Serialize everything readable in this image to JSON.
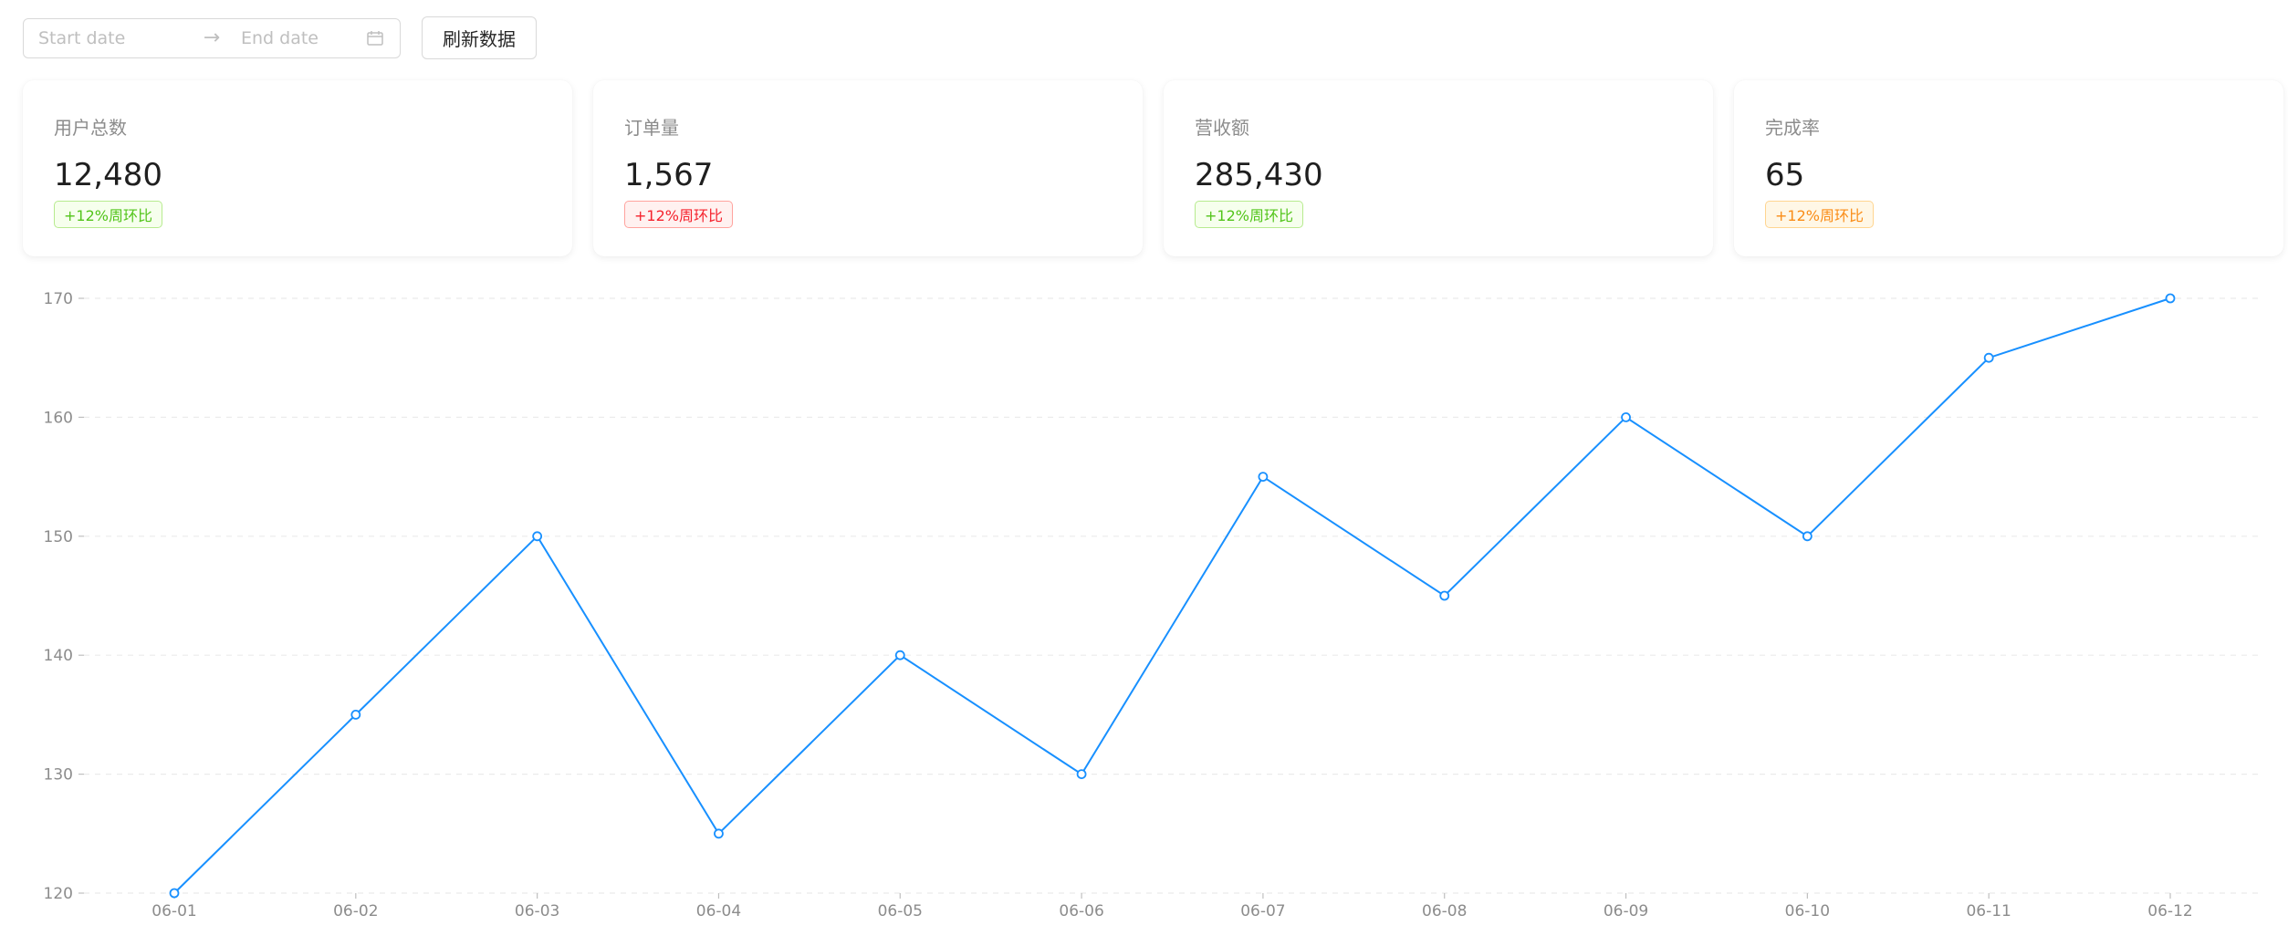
{
  "toolbar": {
    "start_placeholder": "Start date",
    "end_placeholder": "End date",
    "refresh_label": "刷新数据"
  },
  "cards": [
    {
      "title": "用户总数",
      "value": "12,480",
      "badge": "+12%周环比",
      "badge_color": "green"
    },
    {
      "title": "订单量",
      "value": "1,567",
      "badge": "+12%周环比",
      "badge_color": "red"
    },
    {
      "title": "营收额",
      "value": "285,430",
      "badge": "+12%周环比",
      "badge_color": "green"
    },
    {
      "title": "完成率",
      "value": "65",
      "badge": "+12%周环比",
      "badge_color": "orange"
    }
  ],
  "chart_data": {
    "type": "line",
    "categories": [
      "06-01",
      "06-02",
      "06-03",
      "06-04",
      "06-05",
      "06-06",
      "06-07",
      "06-08",
      "06-09",
      "06-10",
      "06-11",
      "06-12"
    ],
    "series": [
      {
        "values": [
          120,
          135,
          150,
          125,
          140,
          130,
          155,
          145,
          160,
          150,
          165,
          170
        ]
      }
    ],
    "yticks": [
      120,
      130,
      140,
      150,
      160,
      170
    ],
    "ylim": [
      120,
      170
    ],
    "line_color": "#1890ff",
    "grid": "horizontal-dashed",
    "title": "",
    "xlabel": "",
    "ylabel": ""
  }
}
